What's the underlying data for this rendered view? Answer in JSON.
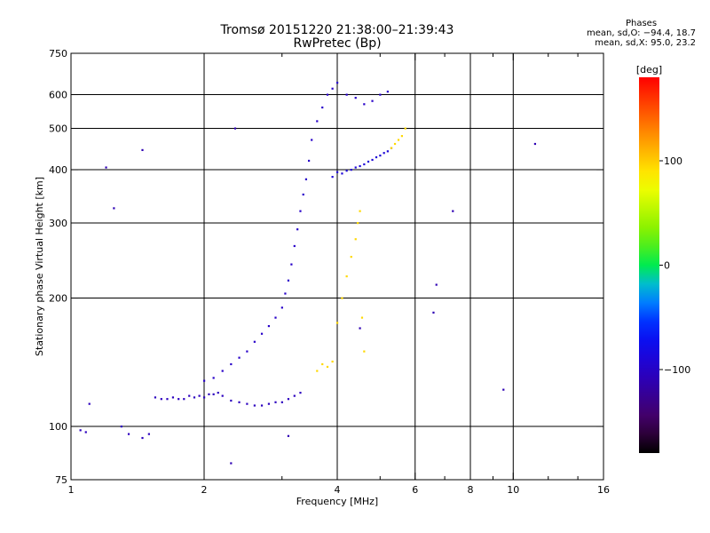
{
  "header": {
    "title_line1": "Tromsø 20151220 21:38:00–21:39:43",
    "title_line2": "RwPretec (Bp)",
    "phases_title": "Phases",
    "phases_line1": "mean, sd,O: −94.4, 18.7",
    "phases_line2": "mean, sd,X:  95.0, 23.2"
  },
  "chart_data": {
    "type": "scatter",
    "xlabel": "Frequency [MHz]",
    "ylabel": "Stationary phase Virtual Height [km]",
    "xscale": "log",
    "yscale": "log",
    "xlim": [
      1,
      16
    ],
    "ylim": [
      75,
      750
    ],
    "xticks": [
      1,
      2,
      4,
      6,
      8,
      10,
      16
    ],
    "xtick_labels": [
      "1",
      "2",
      "4",
      "6",
      "8",
      "10",
      "16"
    ],
    "xminor_ticks": [
      3,
      5,
      7,
      9,
      12,
      14
    ],
    "yticks": [
      75,
      100,
      200,
      300,
      400,
      500,
      600,
      750
    ],
    "ytick_labels": [
      "75",
      "100",
      "200",
      "300",
      "400",
      "500",
      "600",
      "750"
    ],
    "grid_x": [
      2,
      4,
      6,
      8,
      10
    ],
    "grid_y": [
      100,
      200,
      300,
      400,
      500,
      600
    ],
    "colorbar": {
      "label": "[deg]",
      "range": [
        -180,
        180
      ],
      "ticks": [
        100,
        0,
        -100
      ],
      "tick_labels": [
        "100",
        "0",
        "−100"
      ]
    },
    "series": [
      {
        "region": "low-E-layer",
        "phase_deg": -105,
        "x": [
          1.05,
          1.08,
          1.1,
          1.3,
          1.35,
          1.45,
          1.5,
          1.55,
          1.6,
          1.65,
          1.7,
          1.75,
          1.8,
          1.85,
          1.9,
          1.95,
          2.0,
          2.05,
          2.1,
          2.15,
          2.2,
          2.3,
          2.4,
          2.5,
          2.6,
          2.7,
          2.8,
          2.9,
          3.0,
          3.1,
          3.2,
          3.3
        ],
        "y": [
          98,
          97,
          113,
          100,
          96,
          94,
          96,
          117,
          116,
          116,
          117,
          116,
          116,
          118,
          117,
          118,
          117,
          119,
          119,
          120,
          118,
          115,
          114,
          113,
          112,
          112,
          113,
          114,
          114,
          116,
          118,
          120
        ]
      },
      {
        "region": "F-layer-trace",
        "phase_deg": -100,
        "x": [
          2.0,
          2.1,
          2.2,
          2.3,
          2.4,
          2.5,
          2.6,
          2.7,
          2.8,
          2.9,
          3.0,
          3.05,
          3.1,
          3.15,
          3.2,
          3.25,
          3.3,
          3.35,
          3.4,
          3.45,
          3.5,
          3.6,
          3.7,
          3.8,
          3.9,
          4.0,
          4.2,
          4.4,
          4.6,
          4.8,
          5.0,
          5.2
        ],
        "y": [
          128,
          130,
          135,
          140,
          145,
          150,
          158,
          165,
          172,
          180,
          190,
          205,
          220,
          240,
          265,
          290,
          320,
          350,
          380,
          420,
          470,
          520,
          560,
          600,
          620,
          640,
          600,
          590,
          570,
          580,
          600,
          610
        ]
      },
      {
        "region": "F-layer-cusp",
        "phase_deg": -90,
        "x": [
          3.9,
          4.0,
          4.1,
          4.2,
          4.3,
          4.4,
          4.5,
          4.6,
          4.7,
          4.8,
          4.9,
          5.0,
          5.1,
          5.2,
          5.3
        ],
        "y": [
          385,
          395,
          392,
          398,
          400,
          405,
          408,
          412,
          418,
          422,
          428,
          432,
          438,
          442,
          450
        ]
      },
      {
        "region": "X-mode-trace",
        "phase_deg": 95,
        "x": [
          3.6,
          3.7,
          3.8,
          3.9,
          4.0,
          4.1,
          4.2,
          4.3,
          4.4,
          4.45,
          4.5,
          4.55,
          4.6,
          5.3,
          5.4,
          5.5,
          5.6,
          5.7
        ],
        "y": [
          135,
          140,
          138,
          142,
          175,
          200,
          225,
          250,
          275,
          300,
          320,
          180,
          150,
          450,
          460,
          470,
          480,
          500
        ]
      },
      {
        "region": "outliers",
        "phase_deg": -110,
        "x": [
          1.2,
          1.25,
          1.45,
          2.35,
          2.3,
          3.1,
          6.6,
          6.7,
          7.3,
          9.5,
          11.2,
          4.5
        ],
        "y": [
          405,
          325,
          445,
          500,
          82,
          95,
          185,
          215,
          320,
          122,
          460,
          170
        ]
      }
    ]
  }
}
